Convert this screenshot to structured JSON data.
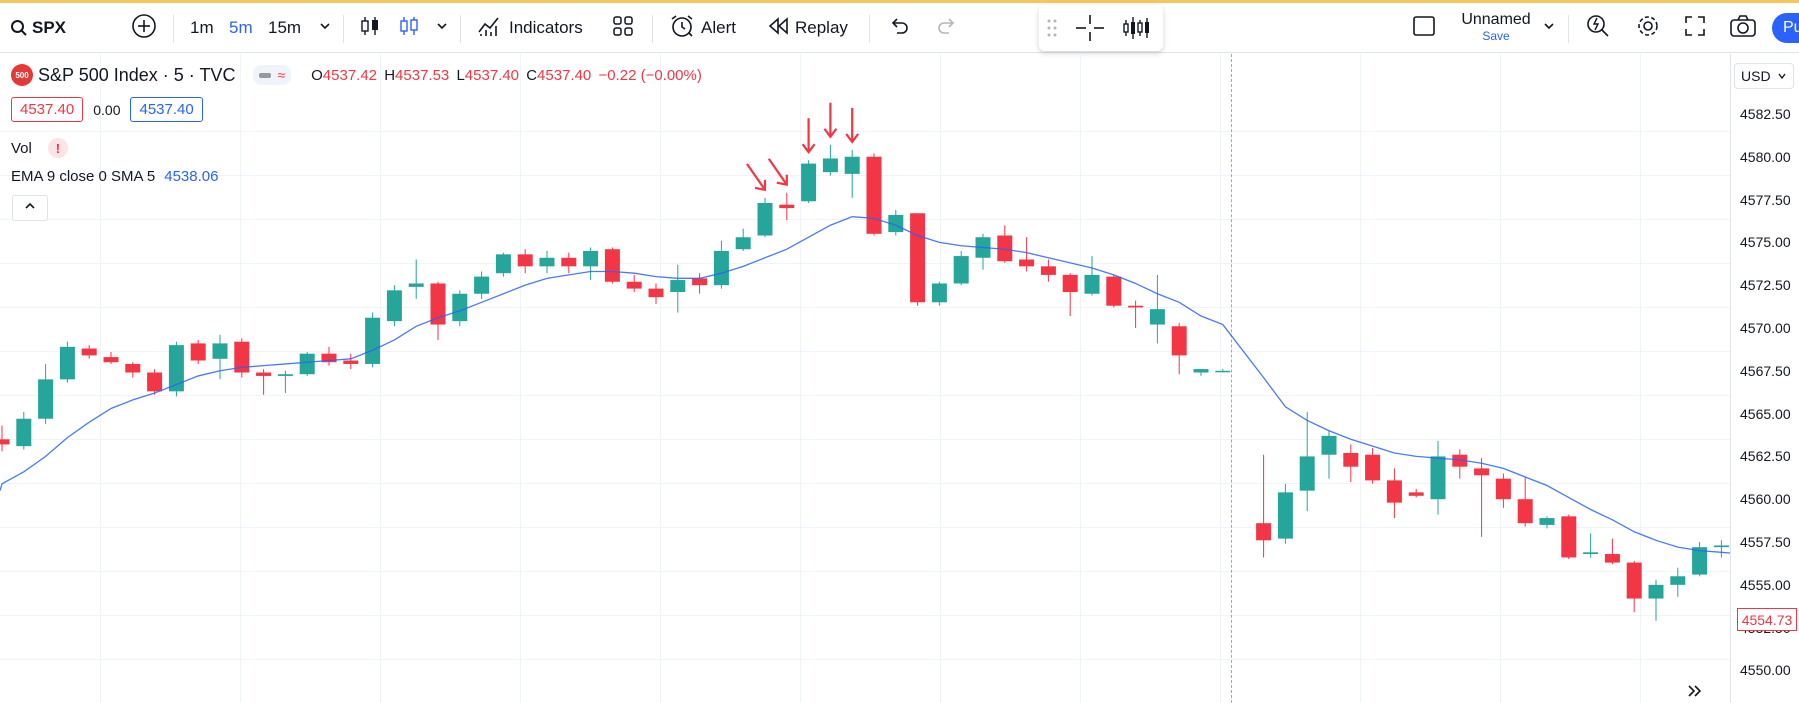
{
  "colors": {
    "bull": "#26a69a",
    "bear": "#f23645",
    "ema": "#2962ff",
    "arrow": "#f23645",
    "accent": "#2962ff"
  },
  "toolbar": {
    "symbol": "SPX",
    "intervals": [
      "1m",
      "5m",
      "15m"
    ],
    "active_interval": "5m",
    "indicators_label": "Indicators",
    "alert_label": "Alert",
    "replay_label": "Replay",
    "layout_name": "Unnamed",
    "save_label": "Save",
    "publish_label": "Pu"
  },
  "legend": {
    "logo_text": "500",
    "title": "S&P 500 Index · 5 · TVC",
    "ohlc": {
      "o_key": "O",
      "o_val": "4537.42",
      "h_key": "H",
      "h_val": "4537.53",
      "l_key": "L",
      "l_val": "4537.40",
      "c_key": "C",
      "c_val": "4537.40",
      "change": "−0.22 (−0.00%)"
    },
    "bid": "4537.40",
    "spread": "0.00",
    "ask": "4537.40",
    "vol_label": "Vol",
    "vol_warning": "!",
    "ema_label": "EMA 9 close 0 SMA 5",
    "ema_value": "4538.06"
  },
  "price_axis": {
    "currency": "USD",
    "last_price": "4554.73"
  },
  "chart_data": {
    "type": "candlestick",
    "ylim": [
      4548.1,
      4586.0
    ],
    "y_ticks": [
      "4582.50",
      "4580.00",
      "4577.50",
      "4575.00",
      "4572.50",
      "4570.00",
      "4567.50",
      "4565.00",
      "4562.50",
      "4560.00",
      "4557.50",
      "4555.00",
      "4552.50",
      "4550.00"
    ],
    "candles": [
      {
        "o": 4563.5,
        "h": 4564.3,
        "l": 4562.8,
        "c": 4563.2
      },
      {
        "o": 4563.1,
        "h": 4565.1,
        "l": 4562.9,
        "c": 4564.7
      },
      {
        "o": 4564.7,
        "h": 4567.9,
        "l": 4564.4,
        "c": 4567.0
      },
      {
        "o": 4567.0,
        "h": 4569.2,
        "l": 4566.8,
        "c": 4568.9
      },
      {
        "o": 4568.8,
        "h": 4569.0,
        "l": 4568.2,
        "c": 4568.4
      },
      {
        "o": 4568.3,
        "h": 4568.6,
        "l": 4567.9,
        "c": 4568.0
      },
      {
        "o": 4567.9,
        "h": 4568.0,
        "l": 4567.1,
        "c": 4567.4
      },
      {
        "o": 4567.4,
        "h": 4567.6,
        "l": 4566.1,
        "c": 4566.3
      },
      {
        "o": 4566.3,
        "h": 4569.2,
        "l": 4566.0,
        "c": 4569.0
      },
      {
        "o": 4569.1,
        "h": 4569.3,
        "l": 4567.9,
        "c": 4568.1
      },
      {
        "o": 4568.2,
        "h": 4569.6,
        "l": 4567.0,
        "c": 4569.1
      },
      {
        "o": 4569.2,
        "h": 4569.4,
        "l": 4567.1,
        "c": 4567.4
      },
      {
        "o": 4567.4,
        "h": 4567.6,
        "l": 4566.1,
        "c": 4567.2
      },
      {
        "o": 4567.2,
        "h": 4567.5,
        "l": 4566.2,
        "c": 4567.3
      },
      {
        "o": 4567.3,
        "h": 4568.6,
        "l": 4567.2,
        "c": 4568.5
      },
      {
        "o": 4568.5,
        "h": 4568.9,
        "l": 4567.8,
        "c": 4568.0
      },
      {
        "o": 4568.1,
        "h": 4568.5,
        "l": 4567.6,
        "c": 4567.9
      },
      {
        "o": 4567.9,
        "h": 4570.9,
        "l": 4567.7,
        "c": 4570.6
      },
      {
        "o": 4570.4,
        "h": 4572.5,
        "l": 4570.1,
        "c": 4572.2
      },
      {
        "o": 4572.4,
        "h": 4574.0,
        "l": 4571.7,
        "c": 4572.6
      },
      {
        "o": 4572.6,
        "h": 4572.7,
        "l": 4569.3,
        "c": 4570.2
      },
      {
        "o": 4570.4,
        "h": 4572.2,
        "l": 4570.1,
        "c": 4572.0
      },
      {
        "o": 4572.0,
        "h": 4573.3,
        "l": 4571.7,
        "c": 4573.0
      },
      {
        "o": 4573.2,
        "h": 4574.4,
        "l": 4573.0,
        "c": 4574.3
      },
      {
        "o": 4574.3,
        "h": 4574.6,
        "l": 4573.2,
        "c": 4573.6
      },
      {
        "o": 4573.6,
        "h": 4574.5,
        "l": 4573.2,
        "c": 4574.1
      },
      {
        "o": 4574.1,
        "h": 4574.4,
        "l": 4573.2,
        "c": 4573.6
      },
      {
        "o": 4573.6,
        "h": 4574.7,
        "l": 4572.8,
        "c": 4574.5
      },
      {
        "o": 4574.6,
        "h": 4574.7,
        "l": 4572.6,
        "c": 4572.7
      },
      {
        "o": 4572.7,
        "h": 4573.1,
        "l": 4572.1,
        "c": 4572.3
      },
      {
        "o": 4572.3,
        "h": 4572.6,
        "l": 4571.4,
        "c": 4571.8
      },
      {
        "o": 4572.1,
        "h": 4573.7,
        "l": 4570.9,
        "c": 4572.8
      },
      {
        "o": 4572.9,
        "h": 4573.2,
        "l": 4572.0,
        "c": 4572.5
      },
      {
        "o": 4572.5,
        "h": 4575.1,
        "l": 4572.3,
        "c": 4574.5
      },
      {
        "o": 4574.6,
        "h": 4575.8,
        "l": 4574.5,
        "c": 4575.3
      },
      {
        "o": 4575.4,
        "h": 4577.6,
        "l": 4575.3,
        "c": 4577.3
      },
      {
        "o": 4577.2,
        "h": 4577.9,
        "l": 4576.3,
        "c": 4577.0
      },
      {
        "o": 4577.4,
        "h": 4579.8,
        "l": 4577.3,
        "c": 4579.6
      },
      {
        "o": 4579.1,
        "h": 4580.7,
        "l": 4578.9,
        "c": 4579.9
      },
      {
        "o": 4579.0,
        "h": 4580.4,
        "l": 4577.6,
        "c": 4580.0
      },
      {
        "o": 4580.0,
        "h": 4580.2,
        "l": 4575.4,
        "c": 4575.5
      },
      {
        "o": 4575.6,
        "h": 4576.9,
        "l": 4575.4,
        "c": 4576.6
      },
      {
        "o": 4576.7,
        "h": 4576.7,
        "l": 4571.3,
        "c": 4571.5
      },
      {
        "o": 4571.5,
        "h": 4572.7,
        "l": 4571.3,
        "c": 4572.6
      },
      {
        "o": 4572.6,
        "h": 4574.5,
        "l": 4572.5,
        "c": 4574.2
      },
      {
        "o": 4574.1,
        "h": 4575.5,
        "l": 4573.4,
        "c": 4575.3
      },
      {
        "o": 4575.4,
        "h": 4576.0,
        "l": 4573.8,
        "c": 4573.9
      },
      {
        "o": 4574.0,
        "h": 4575.3,
        "l": 4573.3,
        "c": 4573.6
      },
      {
        "o": 4573.6,
        "h": 4574.0,
        "l": 4572.7,
        "c": 4573.1
      },
      {
        "o": 4573.1,
        "h": 4573.2,
        "l": 4570.7,
        "c": 4572.1
      },
      {
        "o": 4572.0,
        "h": 4574.2,
        "l": 4571.9,
        "c": 4573.1
      },
      {
        "o": 4573.0,
        "h": 4573.1,
        "l": 4571.2,
        "c": 4571.3
      },
      {
        "o": 4571.3,
        "h": 4571.6,
        "l": 4570.0,
        "c": 4571.2
      },
      {
        "o": 4570.2,
        "h": 4573.1,
        "l": 4569.1,
        "c": 4571.1
      },
      {
        "o": 4570.1,
        "h": 4570.3,
        "l": 4567.3,
        "c": 4568.4
      },
      {
        "o": 4567.4,
        "h": 4567.6,
        "l": 4567.2,
        "c": 4567.6
      },
      {
        "o": 4567.5,
        "h": 4567.6,
        "l": 4567.4,
        "c": 4567.5
      },
      {
        "o": 4558.6,
        "h": 4562.6,
        "l": 4556.6,
        "c": 4557.6
      },
      {
        "o": 4557.7,
        "h": 4560.9,
        "l": 4557.4,
        "c": 4560.4
      },
      {
        "o": 4560.5,
        "h": 4565.1,
        "l": 4559.3,
        "c": 4562.5
      },
      {
        "o": 4562.6,
        "h": 4564.0,
        "l": 4561.2,
        "c": 4563.7
      },
      {
        "o": 4562.7,
        "h": 4563.2,
        "l": 4561.0,
        "c": 4561.9
      },
      {
        "o": 4562.6,
        "h": 4563.0,
        "l": 4560.9,
        "c": 4561.1
      },
      {
        "o": 4561.1,
        "h": 4561.8,
        "l": 4558.9,
        "c": 4559.8
      },
      {
        "o": 4560.4,
        "h": 4560.6,
        "l": 4560.1,
        "c": 4560.2
      },
      {
        "o": 4560.0,
        "h": 4563.4,
        "l": 4559.1,
        "c": 4562.5
      },
      {
        "o": 4562.6,
        "h": 4562.9,
        "l": 4561.2,
        "c": 4561.9
      },
      {
        "o": 4561.8,
        "h": 4562.4,
        "l": 4557.8,
        "c": 4561.4
      },
      {
        "o": 4561.2,
        "h": 4561.5,
        "l": 4559.5,
        "c": 4560.0
      },
      {
        "o": 4560.0,
        "h": 4561.3,
        "l": 4558.4,
        "c": 4558.6
      },
      {
        "o": 4558.5,
        "h": 4559.0,
        "l": 4558.3,
        "c": 4558.9
      },
      {
        "o": 4559.0,
        "h": 4559.1,
        "l": 4556.5,
        "c": 4556.6
      },
      {
        "o": 4556.8,
        "h": 4558.0,
        "l": 4556.6,
        "c": 4556.9
      },
      {
        "o": 4556.8,
        "h": 4557.7,
        "l": 4556.2,
        "c": 4556.3
      },
      {
        "o": 4556.3,
        "h": 4556.4,
        "l": 4553.4,
        "c": 4554.2
      },
      {
        "o": 4554.2,
        "h": 4555.3,
        "l": 4552.9,
        "c": 4555.0
      },
      {
        "o": 4555.0,
        "h": 4556.0,
        "l": 4554.3,
        "c": 4555.5
      },
      {
        "o": 4555.6,
        "h": 4557.5,
        "l": 4555.5,
        "c": 4557.2
      },
      {
        "o": 4557.2,
        "h": 4557.6,
        "l": 4556.6,
        "c": 4557.3
      },
      {
        "o": 4557.4,
        "h": 4557.5,
        "l": 4554.7,
        "c": 4554.8
      }
    ],
    "ema": [
      4560.9,
      4561.6,
      4562.5,
      4563.6,
      4564.5,
      4565.3,
      4565.8,
      4566.2,
      4566.7,
      4567.2,
      4567.5,
      4567.7,
      4567.8,
      4567.9,
      4568.0,
      4568.1,
      4568.2,
      4568.7,
      4569.3,
      4570.1,
      4570.6,
      4571.0,
      4571.5,
      4572.0,
      4572.5,
      4572.9,
      4573.1,
      4573.3,
      4573.3,
      4573.2,
      4573.0,
      4572.9,
      4572.9,
      4573.2,
      4573.6,
      4574.1,
      4574.6,
      4575.3,
      4576.0,
      4576.5,
      4576.4,
      4576.0,
      4575.4,
      4575.0,
      4574.8,
      4574.7,
      4574.6,
      4574.4,
      4574.1,
      4573.8,
      4573.5,
      4573.1,
      4572.6,
      4572.0,
      4571.5,
      4570.7,
      4570.2,
      4567.1,
      4565.4,
      4564.6,
      4564.0,
      4563.5,
      4563.1,
      4562.7,
      4562.5,
      4562.4,
      4562.3,
      4562.1,
      4561.8,
      4561.3,
      4560.8,
      4560.1,
      4559.4,
      4558.8,
      4558.1,
      4557.6,
      4557.2,
      4557.0,
      4556.9,
      4556.8
    ],
    "arrows": [
      {
        "candle": 35,
        "style": "diagonal"
      },
      {
        "candle": 36,
        "style": "diagonal"
      },
      {
        "candle": 37,
        "style": "vertical"
      },
      {
        "candle": 38,
        "style": "vertical"
      },
      {
        "candle": 39,
        "style": "vertical"
      }
    ],
    "session_break_after_candle": 56
  }
}
